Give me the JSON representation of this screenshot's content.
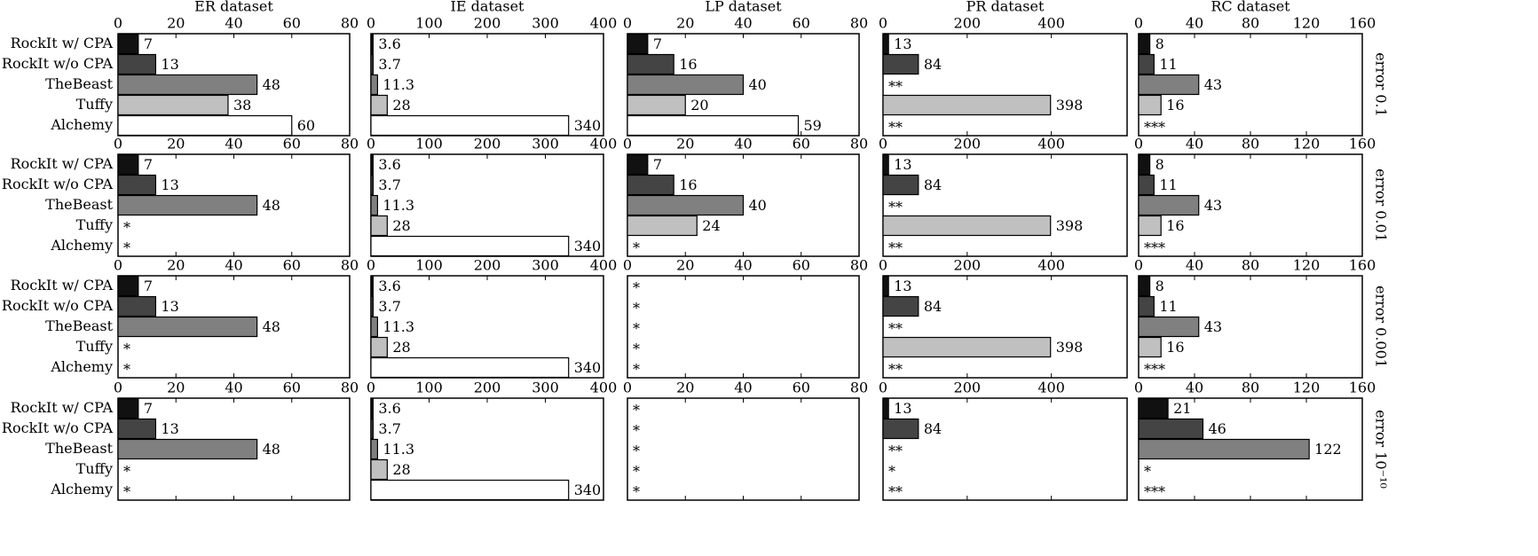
{
  "chart_data": [
    {
      "type": "bar",
      "orientation": "horizontal",
      "title": "ER dataset",
      "categories": [
        "RockIt w/ CPA",
        "RockIt w/o CPA",
        "TheBeast",
        "Tuffy",
        "Alchemy"
      ],
      "values": [
        7,
        13,
        48,
        38,
        60
      ],
      "colors": [
        "#111111",
        "#444444",
        "#808080",
        "#c0c0c0",
        "#ffffff"
      ],
      "xlim": [
        0,
        80
      ],
      "xticks": [
        0,
        20,
        40,
        60,
        80
      ]
    },
    {
      "type": "bar",
      "orientation": "horizontal",
      "title": "IE dataset",
      "values": [
        3.6,
        3.7,
        11.3,
        28,
        340
      ],
      "colors": [
        "#111111",
        "#444444",
        "#808080",
        "#c0c0c0",
        "#ffffff"
      ],
      "xlim": [
        0,
        400
      ],
      "xticks": [
        0,
        100,
        200,
        300,
        400
      ]
    },
    {
      "type": "bar",
      "orientation": "horizontal",
      "title": "LP dataset",
      "values": [
        7,
        16,
        40,
        20,
        59
      ],
      "colors": [
        "#111111",
        "#444444",
        "#808080",
        "#c0c0c0",
        "#ffffff"
      ],
      "xlim": [
        0,
        80
      ],
      "xticks": [
        0,
        20,
        40,
        60,
        80
      ]
    },
    {
      "type": "bar",
      "orientation": "horizontal",
      "title": "PR dataset",
      "values": [
        13,
        84,
        null,
        398,
        null
      ],
      "value_labels": [
        null,
        null,
        "**",
        null,
        "**"
      ],
      "colors": [
        "#111111",
        "#444444",
        "#808080",
        "#c0c0c0",
        "#ffffff"
      ],
      "xlim": [
        0,
        580
      ],
      "xticks": [
        0,
        200,
        400
      ]
    },
    {
      "type": "bar",
      "orientation": "horizontal",
      "title": "RC dataset",
      "row_label": "error 0.1",
      "values": [
        8,
        11,
        43,
        16,
        null
      ],
      "value_labels": [
        null,
        null,
        null,
        null,
        "***"
      ],
      "colors": [
        "#111111",
        "#444444",
        "#808080",
        "#c0c0c0",
        "#ffffff"
      ],
      "xlim": [
        0,
        160
      ],
      "xticks": [
        0,
        40,
        80,
        120,
        160
      ]
    },
    {
      "type": "bar",
      "orientation": "horizontal",
      "categories": [
        "RockIt w/ CPA",
        "RockIt w/o CPA",
        "TheBeast",
        "Tuffy",
        "Alchemy"
      ],
      "values": [
        7,
        13,
        48,
        null,
        null
      ],
      "value_labels": [
        null,
        null,
        null,
        "*",
        "*"
      ],
      "colors": [
        "#111111",
        "#444444",
        "#808080",
        "#c0c0c0",
        "#ffffff"
      ],
      "xlim": [
        0,
        80
      ],
      "xticks": [
        0,
        20,
        40,
        60,
        80
      ]
    },
    {
      "type": "bar",
      "orientation": "horizontal",
      "values": [
        3.6,
        3.7,
        11.3,
        28,
        340
      ],
      "colors": [
        "#111111",
        "#444444",
        "#808080",
        "#c0c0c0",
        "#ffffff"
      ],
      "xlim": [
        0,
        400
      ],
      "xticks": [
        0,
        100,
        200,
        300,
        400
      ]
    },
    {
      "type": "bar",
      "orientation": "horizontal",
      "values": [
        7,
        16,
        40,
        24,
        null
      ],
      "value_labels": [
        null,
        null,
        null,
        null,
        "*"
      ],
      "colors": [
        "#111111",
        "#444444",
        "#808080",
        "#c0c0c0",
        "#ffffff"
      ],
      "xlim": [
        0,
        80
      ],
      "xticks": [
        0,
        20,
        40,
        60,
        80
      ]
    },
    {
      "type": "bar",
      "orientation": "horizontal",
      "values": [
        13,
        84,
        null,
        398,
        null
      ],
      "value_labels": [
        null,
        null,
        "**",
        null,
        "**"
      ],
      "colors": [
        "#111111",
        "#444444",
        "#808080",
        "#c0c0c0",
        "#ffffff"
      ],
      "xlim": [
        0,
        580
      ],
      "xticks": [
        0,
        200,
        400
      ]
    },
    {
      "type": "bar",
      "orientation": "horizontal",
      "row_label": "error 0.01",
      "values": [
        8,
        11,
        43,
        16,
        null
      ],
      "value_labels": [
        null,
        null,
        null,
        null,
        "***"
      ],
      "colors": [
        "#111111",
        "#444444",
        "#808080",
        "#c0c0c0",
        "#ffffff"
      ],
      "xlim": [
        0,
        160
      ],
      "xticks": [
        0,
        40,
        80,
        120,
        160
      ]
    },
    {
      "type": "bar",
      "orientation": "horizontal",
      "categories": [
        "RockIt w/ CPA",
        "RockIt w/o CPA",
        "TheBeast",
        "Tuffy",
        "Alchemy"
      ],
      "values": [
        7,
        13,
        48,
        null,
        null
      ],
      "value_labels": [
        null,
        null,
        null,
        "*",
        "*"
      ],
      "colors": [
        "#111111",
        "#444444",
        "#808080",
        "#c0c0c0",
        "#ffffff"
      ],
      "xlim": [
        0,
        80
      ],
      "xticks": [
        0,
        20,
        40,
        60,
        80
      ]
    },
    {
      "type": "bar",
      "orientation": "horizontal",
      "values": [
        3.6,
        3.7,
        11.3,
        28,
        340
      ],
      "colors": [
        "#111111",
        "#444444",
        "#808080",
        "#c0c0c0",
        "#ffffff"
      ],
      "xlim": [
        0,
        400
      ],
      "xticks": [
        0,
        100,
        200,
        300,
        400
      ]
    },
    {
      "type": "bar",
      "orientation": "horizontal",
      "values": [
        null,
        null,
        null,
        null,
        null
      ],
      "value_labels": [
        "*",
        "*",
        "*",
        "*",
        "*"
      ],
      "colors": [
        "#111111",
        "#444444",
        "#808080",
        "#c0c0c0",
        "#ffffff"
      ],
      "xlim": [
        0,
        80
      ],
      "xticks": [
        0,
        20,
        40,
        60,
        80
      ]
    },
    {
      "type": "bar",
      "orientation": "horizontal",
      "values": [
        13,
        84,
        null,
        398,
        null
      ],
      "value_labels": [
        null,
        null,
        "**",
        null,
        "**"
      ],
      "colors": [
        "#111111",
        "#444444",
        "#808080",
        "#c0c0c0",
        "#ffffff"
      ],
      "xlim": [
        0,
        580
      ],
      "xticks": [
        0,
        200,
        400
      ]
    },
    {
      "type": "bar",
      "orientation": "horizontal",
      "row_label": "error 0.001",
      "values": [
        8,
        11,
        43,
        16,
        null
      ],
      "value_labels": [
        null,
        null,
        null,
        null,
        "***"
      ],
      "colors": [
        "#111111",
        "#444444",
        "#808080",
        "#c0c0c0",
        "#ffffff"
      ],
      "xlim": [
        0,
        160
      ],
      "xticks": [
        0,
        40,
        80,
        120,
        160
      ]
    },
    {
      "type": "bar",
      "orientation": "horizontal",
      "categories": [
        "RockIt w/ CPA",
        "RockIt w/o CPA",
        "TheBeast",
        "Tuffy",
        "Alchemy"
      ],
      "values": [
        7,
        13,
        48,
        null,
        null
      ],
      "value_labels": [
        null,
        null,
        null,
        "*",
        "*"
      ],
      "colors": [
        "#111111",
        "#444444",
        "#808080",
        "#c0c0c0",
        "#ffffff"
      ],
      "xlim": [
        0,
        80
      ],
      "xticks": [
        0,
        20,
        40,
        60,
        80
      ]
    },
    {
      "type": "bar",
      "orientation": "horizontal",
      "values": [
        3.6,
        3.7,
        11.3,
        28,
        340
      ],
      "colors": [
        "#111111",
        "#444444",
        "#808080",
        "#c0c0c0",
        "#ffffff"
      ],
      "xlim": [
        0,
        400
      ],
      "xticks": [
        0,
        100,
        200,
        300,
        400
      ]
    },
    {
      "type": "bar",
      "orientation": "horizontal",
      "values": [
        null,
        null,
        null,
        null,
        null
      ],
      "value_labels": [
        "*",
        "*",
        "*",
        "*",
        "*"
      ],
      "colors": [
        "#111111",
        "#444444",
        "#808080",
        "#c0c0c0",
        "#ffffff"
      ],
      "xlim": [
        0,
        80
      ],
      "xticks": [
        0,
        20,
        40,
        60,
        80
      ]
    },
    {
      "type": "bar",
      "orientation": "horizontal",
      "values": [
        13,
        84,
        null,
        null,
        null
      ],
      "value_labels": [
        null,
        null,
        "**",
        "*",
        "**"
      ],
      "colors": [
        "#111111",
        "#444444",
        "#808080",
        "#c0c0c0",
        "#ffffff"
      ],
      "xlim": [
        0,
        580
      ],
      "xticks": [
        0,
        200,
        400
      ]
    },
    {
      "type": "bar",
      "orientation": "horizontal",
      "row_label": "error 10⁻¹⁰",
      "values": [
        21,
        46,
        122,
        null,
        null
      ],
      "value_labels": [
        null,
        null,
        null,
        "*",
        "***"
      ],
      "colors": [
        "#111111",
        "#444444",
        "#808080",
        "#c0c0c0",
        "#ffffff"
      ],
      "xlim": [
        0,
        160
      ],
      "xticks": [
        0,
        40,
        80,
        120,
        160
      ]
    }
  ]
}
